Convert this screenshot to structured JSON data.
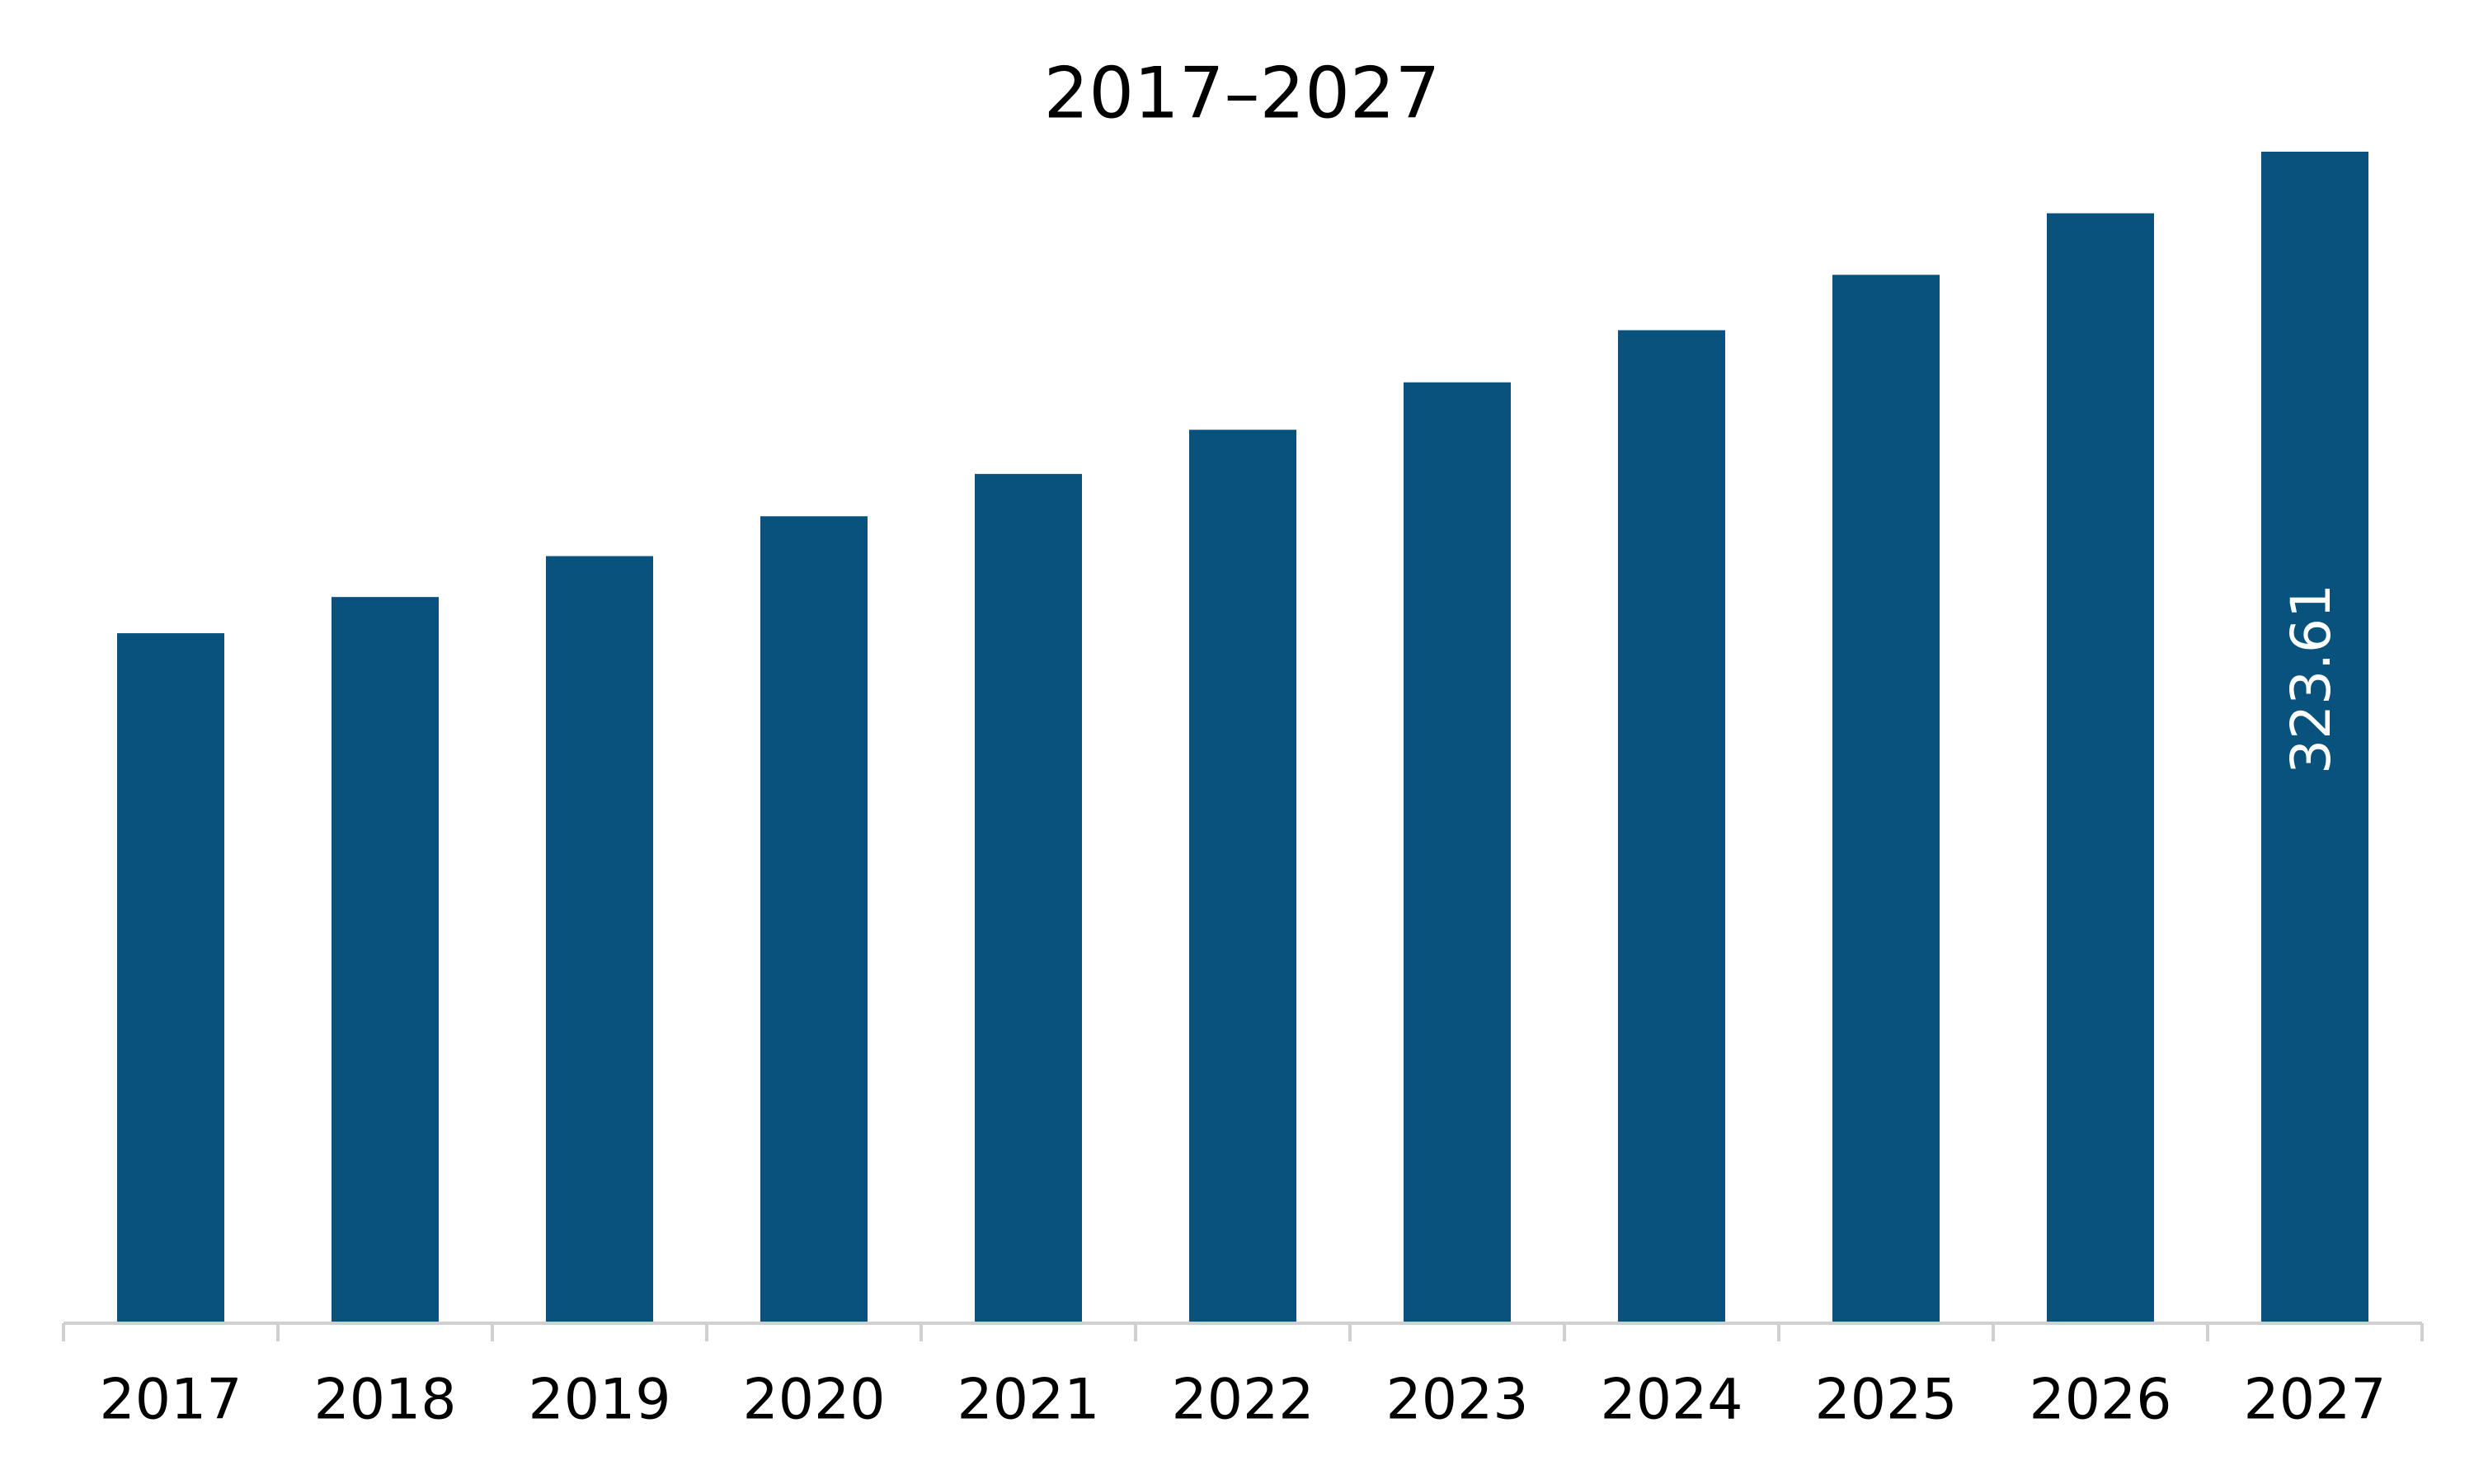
{
  "chart_data": {
    "type": "bar",
    "title": "2017–2027",
    "categories": [
      "2017",
      "2018",
      "2019",
      "2020",
      "2021",
      "2022",
      "2023",
      "2024",
      "2025",
      "2026",
      "2027"
    ],
    "values": [
      190.6,
      200.6,
      211.9,
      222.9,
      234.6,
      246.8,
      259.9,
      274.3,
      289.6,
      306.6,
      323.61
    ],
    "value_labels": [
      null,
      null,
      null,
      null,
      null,
      null,
      null,
      null,
      null,
      null,
      "323.61"
    ],
    "color": "#08527e"
  }
}
